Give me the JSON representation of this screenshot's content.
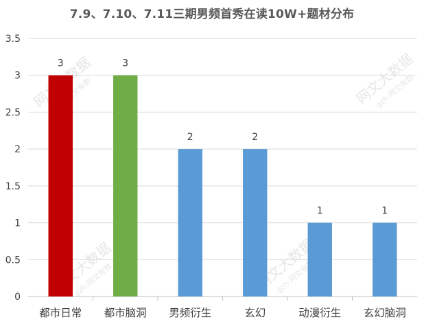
{
  "chart_data": {
    "type": "bar",
    "title": "7.9、7.10、7.11三期男频首秀在读10W+题材分布",
    "categories": [
      "都市日常",
      "都市脑洞",
      "男频衍生",
      "玄幻",
      "动漫衍生",
      "玄幻脑洞"
    ],
    "values": [
      3,
      3,
      2,
      2,
      1,
      1
    ],
    "data_labels": [
      "3",
      "3",
      "2",
      "2",
      "1",
      "1"
    ],
    "bar_colors": [
      "#c00000",
      "#70ad47",
      "#5b9bd5",
      "#5b9bd5",
      "#5b9bd5",
      "#5b9bd5"
    ],
    "xlabel": "",
    "ylabel": "",
    "ylim": [
      0,
      3.5
    ],
    "yticks": [
      "0",
      "0.5",
      "1",
      "1.5",
      "2",
      "2.5",
      "3",
      "3.5"
    ],
    "grid": true,
    "legend": "none"
  },
  "watermark": {
    "main": "网文大数据",
    "sub": "gzh:网文有数"
  }
}
